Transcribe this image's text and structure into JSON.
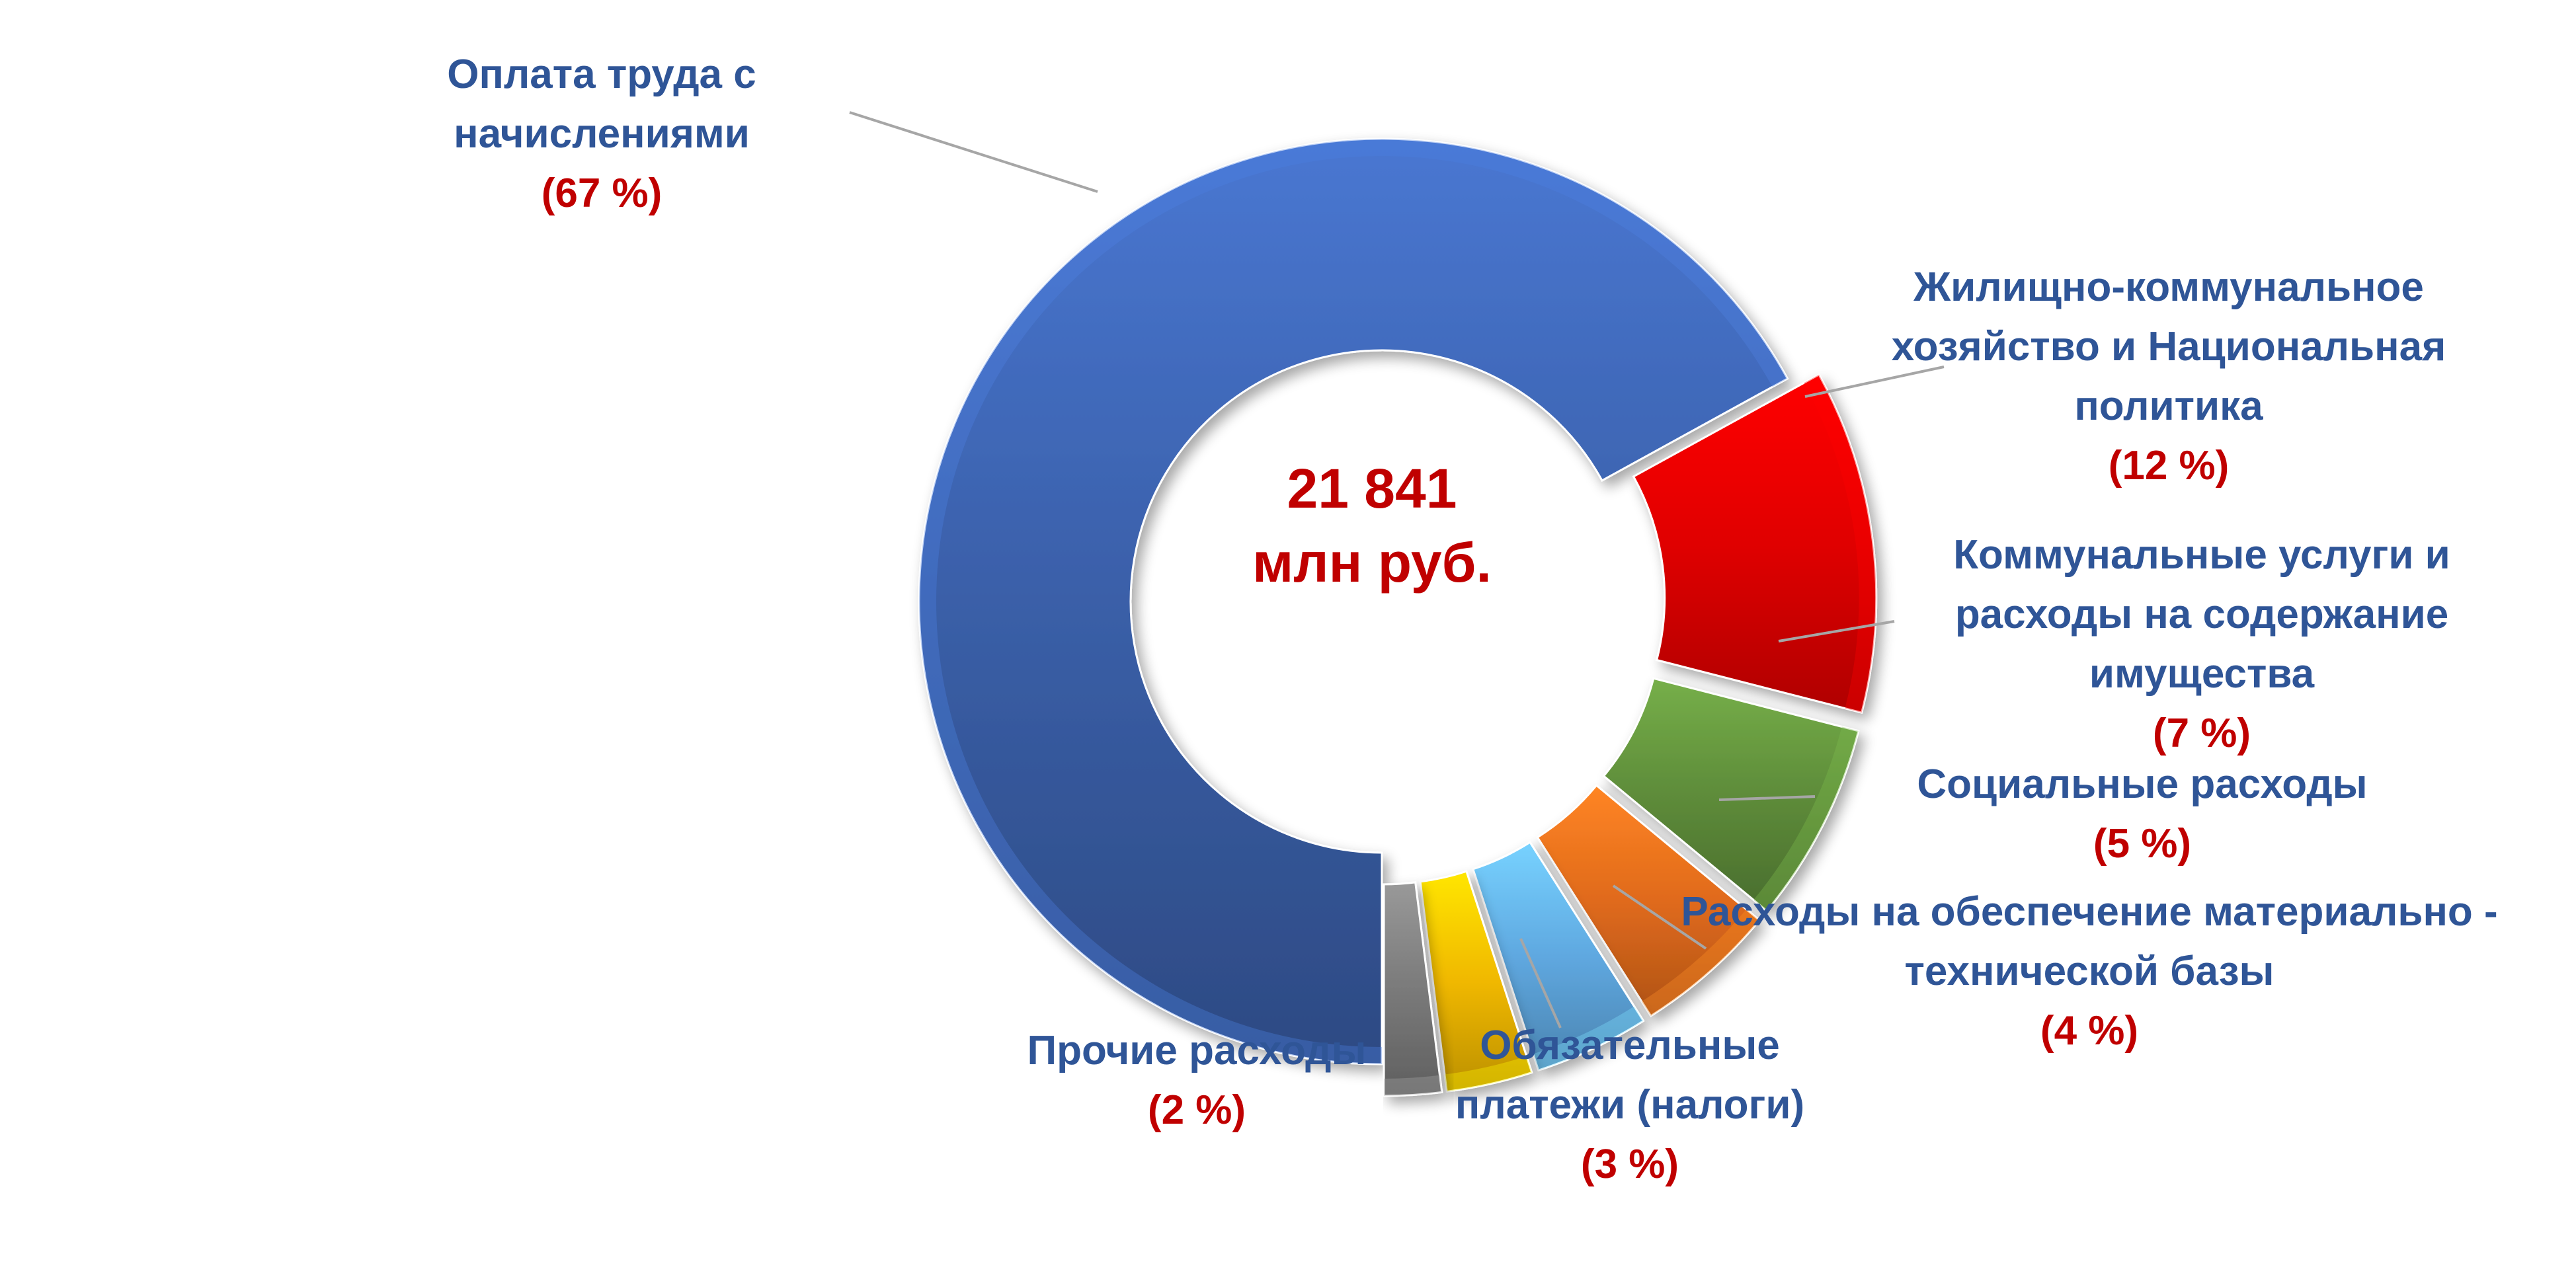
{
  "chart_data": {
    "type": "pie",
    "variant": "donut",
    "center_text": [
      "21 841",
      "млн руб."
    ],
    "total": 21841,
    "unit": "млн руб.",
    "slices": [
      {
        "name": "Оплата труда с начислениями",
        "label_lines": [
          "Оплата труда с",
          "начислениями"
        ],
        "pct_text": "(67 %)",
        "value": 67,
        "color": "#3a5fa8",
        "exploded": false
      },
      {
        "name": "Жилищно-коммунальное хозяйство и Национальная политика",
        "label_lines": [
          "Жилищно-коммунальное",
          "хозяйство и Национальная",
          "политика"
        ],
        "pct_text": "(12 %)",
        "value": 12,
        "color": "#e00000",
        "exploded": true
      },
      {
        "name": "Коммунальные услуги и расходы на содержание имущества",
        "label_lines": [
          "Коммунальные услуги и",
          "расходы на содержание",
          "имущества"
        ],
        "pct_text": "(7 %)",
        "value": 7,
        "color": "#5e8c3a",
        "exploded": true
      },
      {
        "name": "Социальные расходы",
        "label_lines": [
          "Социальные расходы"
        ],
        "pct_text": "(5 %)",
        "value": 5,
        "color": "#e06a1c",
        "exploded": true
      },
      {
        "name": "Расходы на обеспечение материально - технической базы",
        "label_lines": [
          "Расходы на обеспечение материально -",
          "технической базы"
        ],
        "pct_text": "(4 %)",
        "value": 4,
        "color": "#5fa8e0",
        "exploded": true
      },
      {
        "name": "Обязательные платежи (налоги)",
        "label_lines": [
          "Обязательные",
          "платежи (налоги)"
        ],
        "pct_text": "(3 %)",
        "value": 3,
        "color": "#f0b800",
        "exploded": true
      },
      {
        "name": "Прочие расходы",
        "label_lines": [
          "Прочие расходы"
        ],
        "pct_text": "(2 %)",
        "value": 2,
        "color": "#7a7a7a",
        "exploded": true
      }
    ],
    "legend": "none"
  }
}
